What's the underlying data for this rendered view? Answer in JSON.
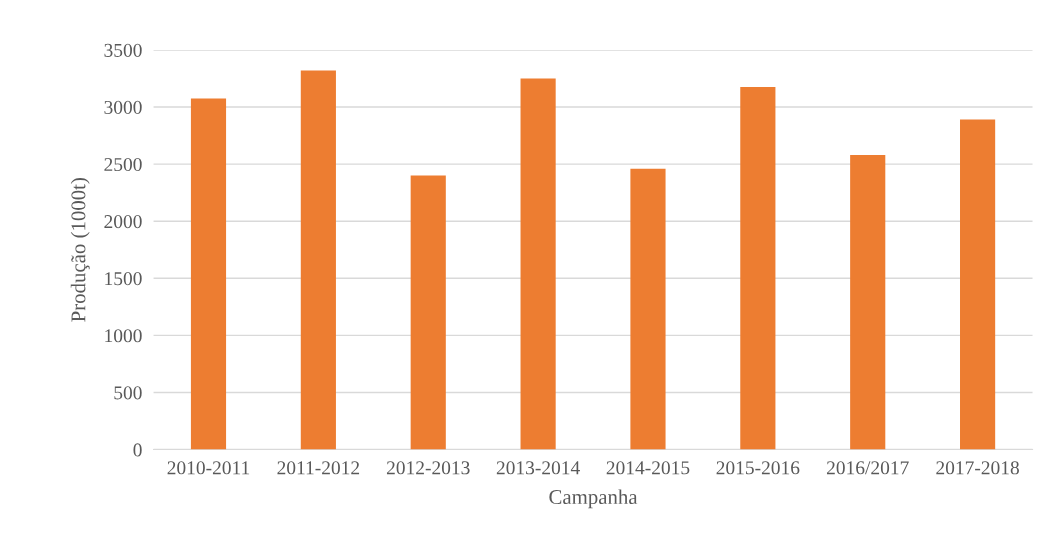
{
  "chart_data": {
    "type": "bar",
    "xlabel": "Campanha",
    "ylabel": "Produção (1000t)",
    "categories": [
      "2010-2011",
      "2011-2012",
      "2012-2013",
      "2013-2014",
      "2014-2015",
      "2015-2016",
      "2016/2017",
      "2017-2018"
    ],
    "values": [
      3075,
      3320,
      2400,
      3250,
      2460,
      3175,
      2580,
      2890
    ],
    "color": "#ed7d31",
    "ylim": [
      0,
      3500
    ],
    "yticks": [
      0,
      500,
      1000,
      1500,
      2000,
      2500,
      3000,
      3500
    ],
    "grid": "y",
    "legend": false
  }
}
